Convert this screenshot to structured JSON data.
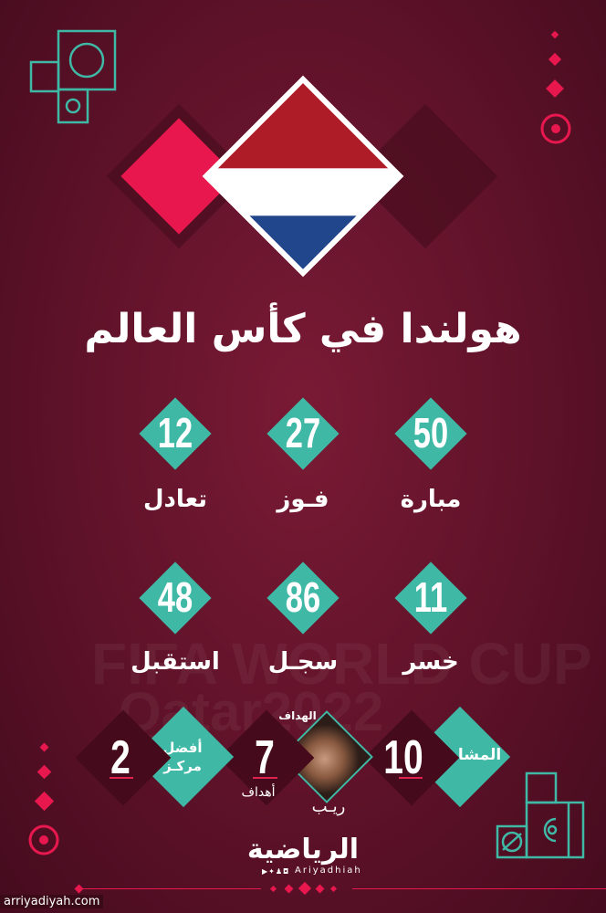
{
  "title": "هولندا في كأس العالم",
  "watermark": {
    "line1": "FIFA WORLD CUP",
    "line2": "Qatar2022"
  },
  "flag": {
    "colors": [
      "#ae1c28",
      "#ffffff",
      "#21468b"
    ]
  },
  "colors": {
    "teal": "#3fb9a6",
    "pink": "#e8184f",
    "background": "#5e1229"
  },
  "stats": [
    {
      "value": "50",
      "label": "مبارة"
    },
    {
      "value": "27",
      "label": "فـوز"
    },
    {
      "value": "12",
      "label": "تعادل"
    },
    {
      "value": "11",
      "label": "خسر"
    },
    {
      "value": "86",
      "label": "سجـل"
    },
    {
      "value": "48",
      "label": "استقبل"
    }
  ],
  "bottom": {
    "participations": {
      "label": "المشاركات",
      "value": "10"
    },
    "scorer": {
      "caption": "الهداف",
      "name": "ريـب",
      "value": "7",
      "unit": "أهداف"
    },
    "best": {
      "label_line1": "أفضل",
      "label_line2": "مركـز",
      "value": "2"
    }
  },
  "brand": {
    "logo": "الرياضية",
    "handle": "Ariyadhiah",
    "social_icons": [
      "youtube-icon",
      "twitter-icon",
      "snapchat-icon",
      "instagram-icon"
    ]
  },
  "site": "arriyadiyah.com"
}
